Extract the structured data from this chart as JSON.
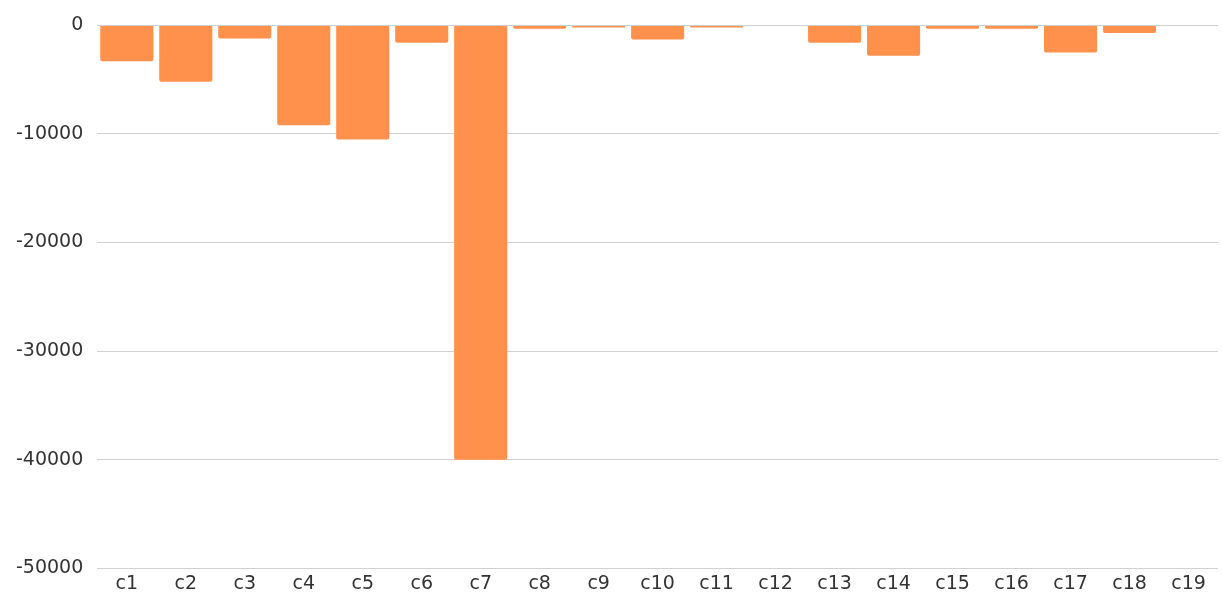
{
  "chart_data": {
    "type": "bar",
    "categories": [
      "c1",
      "c2",
      "c3",
      "c4",
      "c5",
      "c6",
      "c7",
      "c8",
      "c9",
      "c10",
      "c11",
      "c12",
      "c13",
      "c14",
      "c15",
      "c16",
      "c17",
      "c18",
      "c19"
    ],
    "values": [
      -3300,
      -5200,
      -1200,
      -9200,
      -10500,
      -1600,
      -40000,
      -300,
      -200,
      -1300,
      -200,
      0,
      -1600,
      -2800,
      -300,
      -300,
      -2500,
      -700,
      0
    ],
    "color": "#ff914d",
    "ylim": [
      -50000,
      0
    ],
    "yticks": [
      0,
      -10000,
      -20000,
      -30000,
      -40000,
      -50000
    ],
    "grid": "y"
  }
}
